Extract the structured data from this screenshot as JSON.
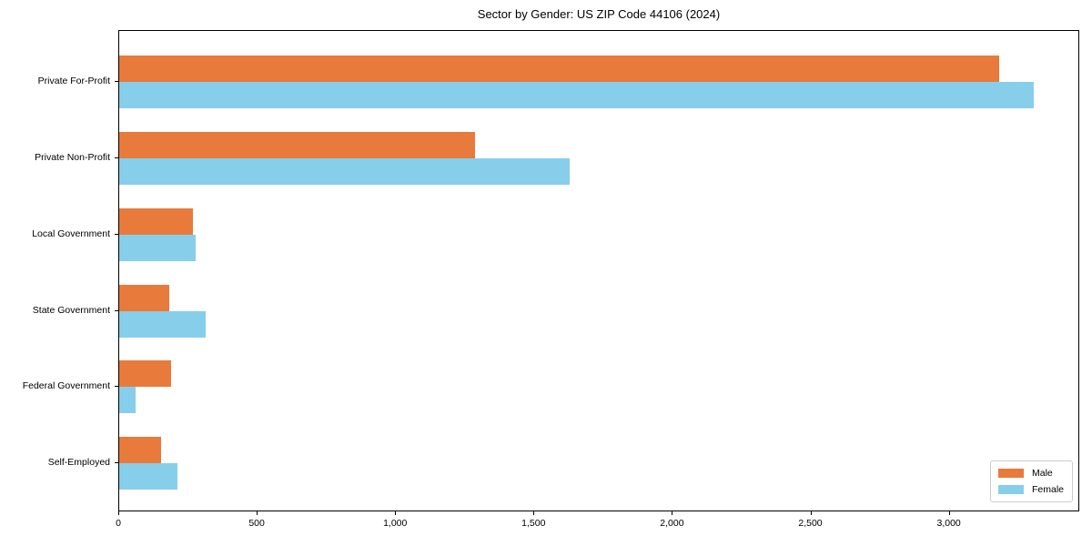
{
  "figure": {
    "background": "#ffffff"
  },
  "chart_data": {
    "type": "bar",
    "orientation": "horizontal",
    "title": "Sector by Gender: US ZIP Code 44106 (2024)",
    "categories": [
      "Private For-Profit",
      "Private Non-Profit",
      "Local Government",
      "State Government",
      "Federal Government",
      "Self-Employed"
    ],
    "series": [
      {
        "name": "Male",
        "color": "#E87A3C",
        "values": [
          3179,
          1285,
          265,
          181,
          189,
          151
        ]
      },
      {
        "name": "Female",
        "color": "#87CEEB",
        "values": [
          3302,
          1628,
          276,
          312,
          58,
          212
        ]
      }
    ],
    "xlabel": "",
    "ylabel": "",
    "xlim": [
      0,
      3468
    ],
    "xticks": [
      0,
      500,
      1000,
      1500,
      2000,
      2500,
      3000
    ],
    "xtick_labels": [
      "0",
      "500",
      "1,000",
      "1,500",
      "2,000",
      "2,500",
      "3,000"
    ],
    "grid": false,
    "legend": {
      "position": "lower right",
      "entries": [
        "Male",
        "Female"
      ]
    }
  }
}
